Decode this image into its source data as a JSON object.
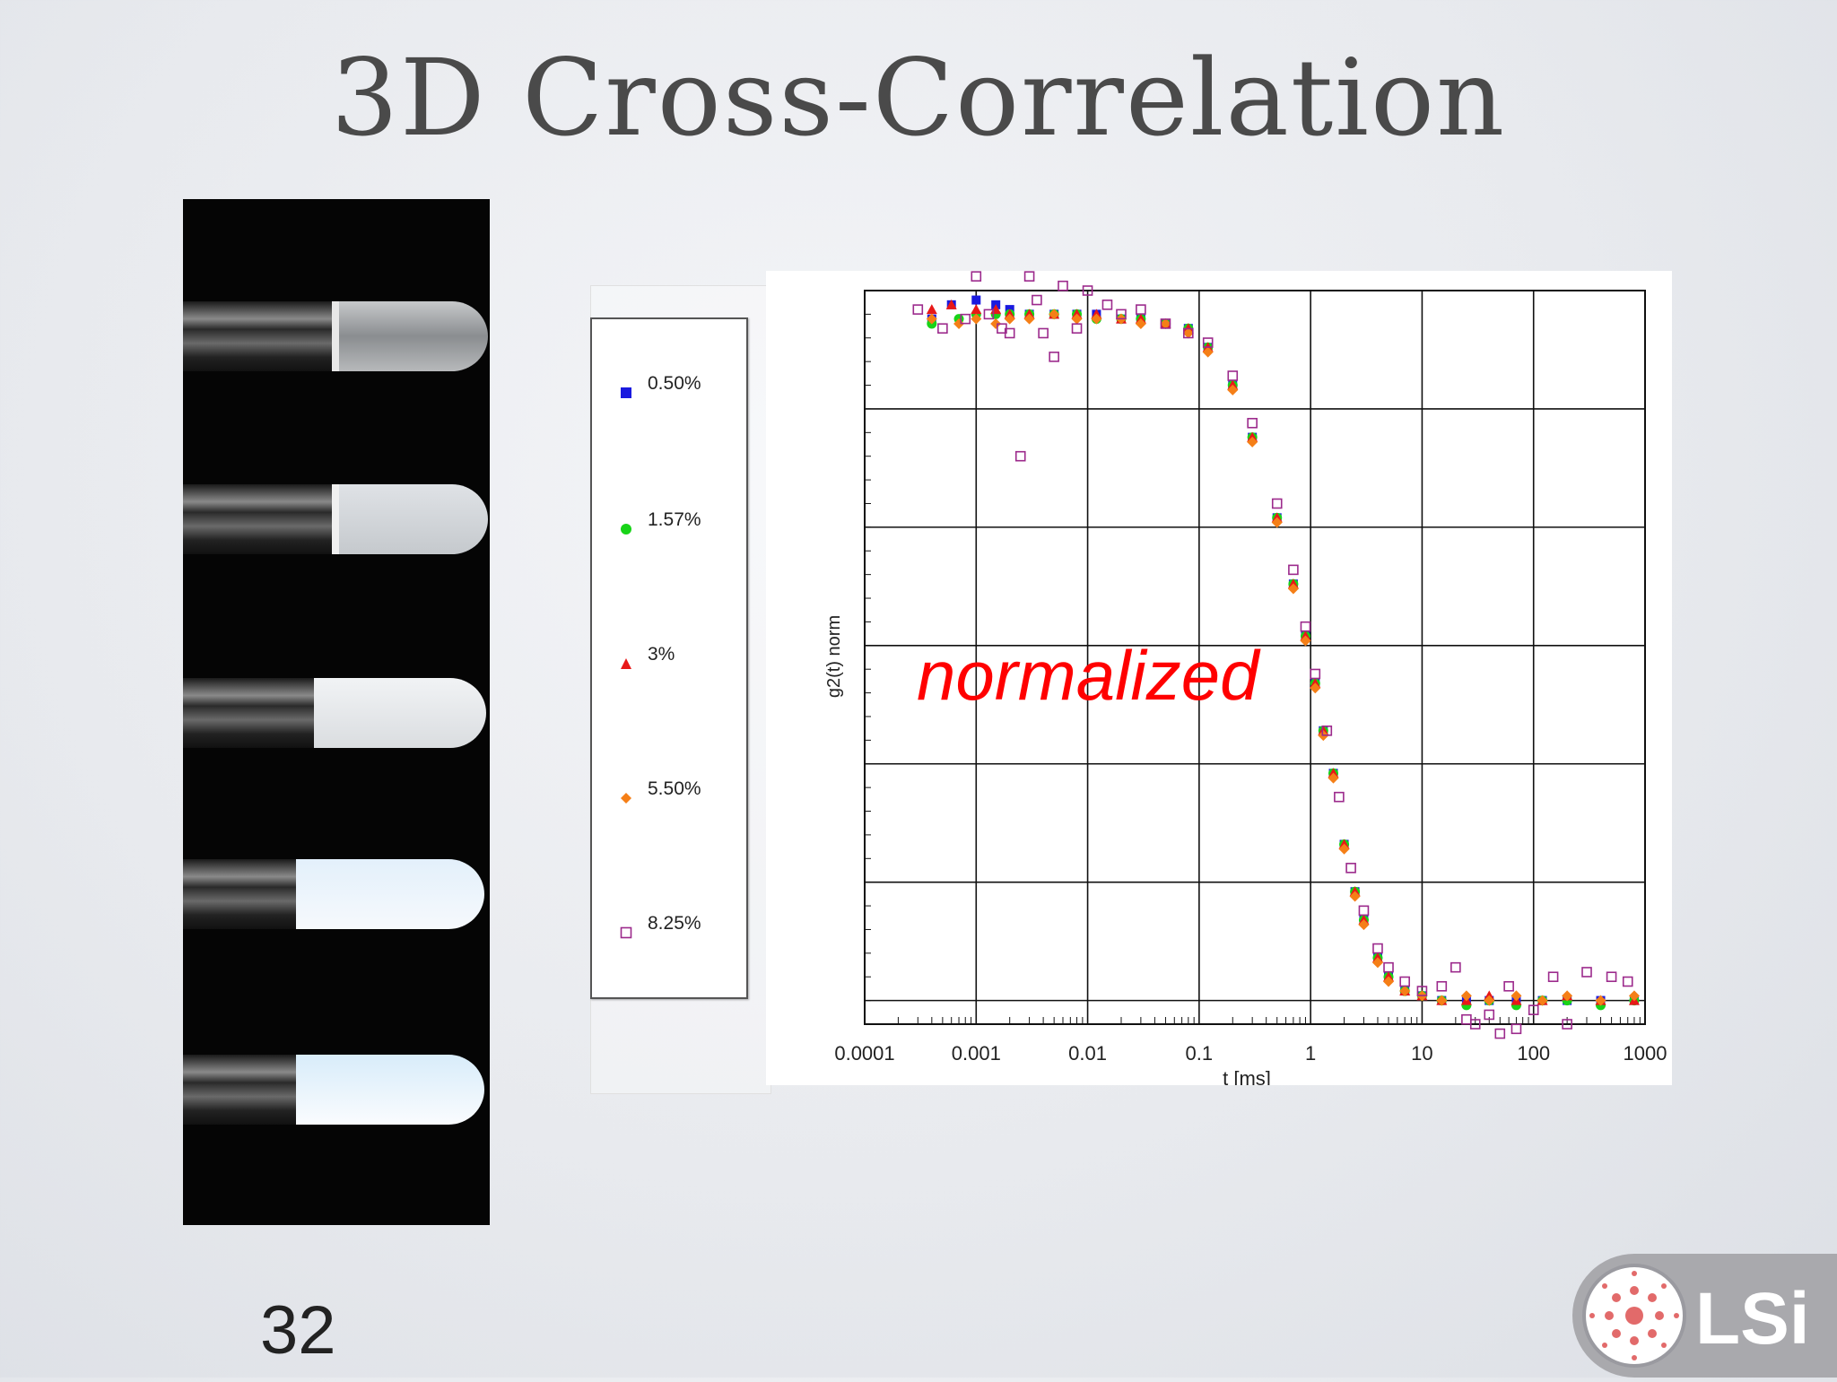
{
  "slide": {
    "title": "3D Cross-Correlation",
    "page_number": "32",
    "logo_text": "LSi"
  },
  "legend": {
    "items": [
      {
        "label": "0.50%",
        "color": "#1a1adf",
        "marker": "square"
      },
      {
        "label": "1.57%",
        "color": "#18d418",
        "marker": "circle"
      },
      {
        "label": "3%",
        "color": "#e81818",
        "marker": "triangle"
      },
      {
        "label": "5.50%",
        "color": "#f57f17",
        "marker": "diamond"
      },
      {
        "label": "8.25%",
        "color": "#9c2a8c",
        "marker": "open-square"
      }
    ]
  },
  "chart_data": {
    "type": "scatter",
    "title": "",
    "xlabel": "t [ms]",
    "ylabel": "g2(t) norm",
    "annotation": "normalized",
    "annotation_color": "#ff0000",
    "x_scale": "log",
    "xlim": [
      0.0001,
      1000
    ],
    "ylim": [
      -0.5,
      1.05
    ],
    "x_ticks": [
      "0.0001",
      "0.001",
      "0.01",
      "0.1",
      "1",
      "10",
      "100",
      "1000"
    ],
    "grid": true,
    "legend_position": "left, outside plot",
    "series": [
      {
        "name": "0.50%",
        "color": "#1a1adf",
        "marker": "square",
        "x": [
          0.0004,
          0.0006,
          0.001,
          0.0015,
          0.002,
          0.003,
          0.005,
          0.008,
          0.012,
          0.02,
          0.03,
          0.05,
          0.08,
          0.12,
          0.2,
          0.3,
          0.5,
          0.7,
          0.9,
          1.1,
          1.3,
          1.6,
          2,
          2.5,
          3,
          4,
          5,
          7,
          10,
          15,
          25,
          40,
          70,
          120,
          200,
          400,
          800
        ],
        "y": [
          0.99,
          1.02,
          1.03,
          1.02,
          1.01,
          1.0,
          1.0,
          1.0,
          1.0,
          0.99,
          0.99,
          0.98,
          0.97,
          0.93,
          0.85,
          0.74,
          0.57,
          0.43,
          0.32,
          0.22,
          0.12,
          0.03,
          -0.12,
          -0.22,
          -0.28,
          -0.36,
          -0.4,
          -0.43,
          -0.44,
          -0.45,
          -0.45,
          -0.45,
          -0.45,
          -0.45,
          -0.45,
          -0.45,
          -0.45
        ]
      },
      {
        "name": "1.57%",
        "color": "#18d418",
        "marker": "circle",
        "x": [
          0.0004,
          0.0007,
          0.001,
          0.0015,
          0.002,
          0.003,
          0.005,
          0.008,
          0.012,
          0.02,
          0.03,
          0.05,
          0.08,
          0.12,
          0.2,
          0.3,
          0.5,
          0.7,
          0.9,
          1.1,
          1.3,
          1.6,
          2,
          2.5,
          3,
          4,
          5,
          7,
          10,
          15,
          25,
          40,
          70,
          120,
          200,
          400,
          800
        ],
        "y": [
          0.98,
          0.99,
          1.0,
          1.0,
          1.0,
          1.0,
          1.0,
          1.0,
          0.99,
          0.99,
          0.99,
          0.98,
          0.97,
          0.93,
          0.85,
          0.74,
          0.57,
          0.43,
          0.32,
          0.22,
          0.12,
          0.03,
          -0.12,
          -0.22,
          -0.28,
          -0.36,
          -0.4,
          -0.43,
          -0.44,
          -0.45,
          -0.46,
          -0.45,
          -0.46,
          -0.45,
          -0.45,
          -0.46,
          -0.45
        ]
      },
      {
        "name": "3%",
        "color": "#e81818",
        "marker": "triangle",
        "x": [
          0.0004,
          0.0006,
          0.001,
          0.0015,
          0.002,
          0.003,
          0.005,
          0.008,
          0.012,
          0.02,
          0.03,
          0.05,
          0.08,
          0.12,
          0.2,
          0.3,
          0.5,
          0.7,
          0.9,
          1.1,
          1.3,
          1.6,
          2,
          2.5,
          3,
          4,
          5,
          7,
          10,
          15,
          25,
          40,
          70,
          120,
          200,
          400,
          800
        ],
        "y": [
          1.01,
          1.02,
          1.01,
          1.01,
          1.0,
          1.0,
          1.0,
          1.0,
          1.0,
          0.99,
          0.99,
          0.98,
          0.97,
          0.93,
          0.85,
          0.74,
          0.57,
          0.43,
          0.32,
          0.22,
          0.12,
          0.03,
          -0.12,
          -0.22,
          -0.28,
          -0.36,
          -0.4,
          -0.43,
          -0.44,
          -0.45,
          -0.45,
          -0.44,
          -0.45,
          -0.45,
          -0.44,
          -0.45,
          -0.45
        ]
      },
      {
        "name": "5.50%",
        "color": "#f57f17",
        "marker": "diamond",
        "x": [
          0.0004,
          0.0007,
          0.001,
          0.0015,
          0.002,
          0.003,
          0.005,
          0.008,
          0.012,
          0.02,
          0.03,
          0.05,
          0.08,
          0.12,
          0.2,
          0.3,
          0.5,
          0.7,
          0.9,
          1.1,
          1.3,
          1.6,
          2,
          2.5,
          3,
          4,
          5,
          7,
          10,
          15,
          25,
          40,
          70,
          120,
          200,
          400,
          800
        ],
        "y": [
          0.99,
          0.98,
          0.99,
          0.98,
          0.99,
          0.99,
          1.0,
          0.99,
          0.99,
          0.99,
          0.98,
          0.98,
          0.96,
          0.92,
          0.84,
          0.73,
          0.56,
          0.42,
          0.31,
          0.21,
          0.11,
          0.02,
          -0.13,
          -0.23,
          -0.29,
          -0.37,
          -0.41,
          -0.43,
          -0.44,
          -0.45,
          -0.44,
          -0.45,
          -0.44,
          -0.45,
          -0.44,
          -0.45,
          -0.44
        ]
      },
      {
        "name": "8.25%",
        "color": "#9c2a8c",
        "marker": "open-square",
        "x": [
          0.0003,
          0.0005,
          0.0008,
          0.001,
          0.0013,
          0.0017,
          0.002,
          0.0025,
          0.003,
          0.0035,
          0.004,
          0.005,
          0.006,
          0.008,
          0.01,
          0.015,
          0.02,
          0.03,
          0.05,
          0.08,
          0.12,
          0.2,
          0.3,
          0.5,
          0.7,
          0.9,
          1.1,
          1.4,
          1.8,
          2.3,
          3,
          4,
          5,
          7,
          10,
          15,
          20,
          25,
          30,
          40,
          50,
          60,
          70,
          100,
          150,
          200,
          300,
          500,
          700
        ],
        "y": [
          1.01,
          0.97,
          0.99,
          1.08,
          1.0,
          0.97,
          0.96,
          0.7,
          1.08,
          1.03,
          0.96,
          0.91,
          1.06,
          0.97,
          1.05,
          1.02,
          1.0,
          1.01,
          0.98,
          0.96,
          0.94,
          0.87,
          0.77,
          0.6,
          0.46,
          0.34,
          0.24,
          0.12,
          -0.02,
          -0.17,
          -0.26,
          -0.34,
          -0.38,
          -0.41,
          -0.43,
          -0.42,
          -0.38,
          -0.49,
          -0.5,
          -0.48,
          -0.52,
          -0.42,
          -0.51,
          -0.47,
          -0.4,
          -0.5,
          -0.39,
          -0.4,
          -0.41
        ]
      }
    ]
  }
}
